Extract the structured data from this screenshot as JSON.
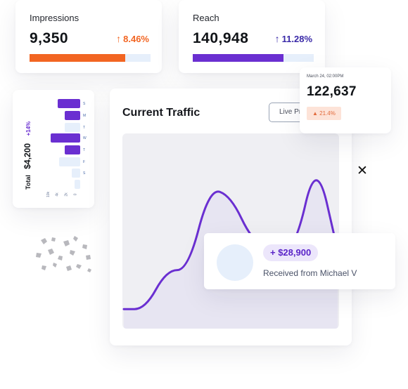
{
  "colors": {
    "orange": "#f26522",
    "purple": "#6a2fd1",
    "light_blue": "#e6effb",
    "light_purple": "#ece6fb",
    "badge_bg": "#fde3d8"
  },
  "impressions": {
    "label": "Impressions",
    "value": "9,350",
    "delta": "8.46%",
    "delta_icon": "arrow-up-icon",
    "progress": 0.79
  },
  "reach": {
    "label": "Reach",
    "value": "140,948",
    "delta": "11.28%",
    "delta_icon": "arrow-up-icon",
    "progress": 0.75
  },
  "total": {
    "label": "Total",
    "value": "$4,200",
    "delta": "+14%",
    "day_labels": [
      "S",
      "M",
      "T",
      "W",
      "T",
      "F",
      "S"
    ],
    "tick_labels": [
      "0",
      "2k",
      "4k",
      "10k"
    ]
  },
  "traffic": {
    "title": "Current Traffic",
    "button": "Live Preview"
  },
  "highlight": {
    "date": "March 24, 02:00PM",
    "value": "122,637",
    "badge": "21.4%",
    "badge_icon": "triangle-up-icon"
  },
  "payment": {
    "amount": "+ $28,900",
    "description": "Received from Michael V"
  },
  "icons": {
    "close": "close-icon"
  },
  "chart_data": {
    "type": "line",
    "title": "Current Traffic",
    "x": [
      0,
      1,
      2,
      3,
      4,
      5,
      6,
      7,
      8,
      9,
      10
    ],
    "values": [
      10,
      10,
      30,
      30,
      72,
      68,
      45,
      40,
      40,
      88,
      40
    ],
    "ylim": [
      0,
      100
    ]
  }
}
